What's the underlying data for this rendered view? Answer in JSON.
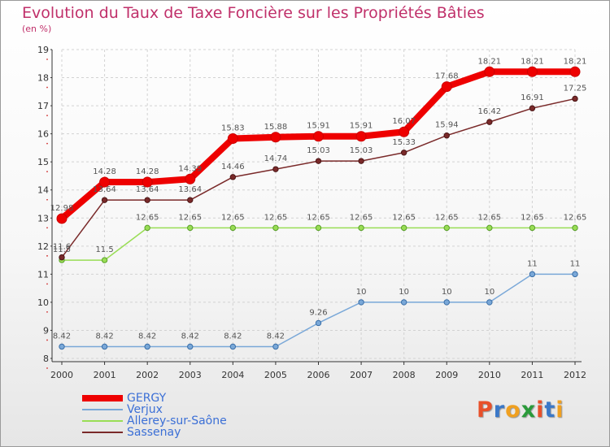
{
  "title": "Evolution du Taux de Taxe Foncière sur les Propriétés Bâties",
  "subtitle": "(en %)",
  "chart_data": {
    "type": "line",
    "title": "Evolution du Taux de Taxe Foncière sur les Propriétés Bâties",
    "ylabel": "(en %)",
    "x": [
      "2000",
      "2001",
      "2002",
      "2003",
      "2004",
      "2005",
      "2006",
      "2007",
      "2008",
      "2009",
      "2010",
      "2011",
      "2012"
    ],
    "ylim": [
      8,
      19
    ],
    "yticks": [
      8,
      9,
      10,
      11,
      12,
      13,
      14,
      15,
      16,
      17,
      18,
      19
    ],
    "grid": true,
    "legend_position": "bottom-left",
    "series": [
      {
        "name": "GERGY",
        "color": "#ee0000",
        "values": [
          12.98,
          14.28,
          14.28,
          14.39,
          15.83,
          15.88,
          15.91,
          15.91,
          16.07,
          17.68,
          18.21,
          18.21,
          18.21
        ],
        "labels": [
          "12.98",
          "14.28",
          "14.28",
          "14.39",
          "15.83",
          "15.88",
          "15.91",
          "15.91",
          "16.07",
          "17.68",
          "18.21",
          "18.21",
          "18.21"
        ]
      },
      {
        "name": "Verjux",
        "color": "#7aa8d8",
        "values": [
          8.42,
          8.42,
          8.42,
          8.42,
          8.42,
          8.42,
          9.26,
          10,
          10,
          10,
          10,
          11,
          11
        ],
        "labels": [
          "8.42",
          "8.42",
          "8.42",
          "8.42",
          "8.42",
          "8.42",
          "9.26",
          "10",
          "10",
          "10",
          "10",
          "11",
          "11"
        ]
      },
      {
        "name": "Allerey-sur-Saône",
        "color": "#99dd55",
        "values": [
          11.5,
          11.5,
          12.65,
          12.65,
          12.65,
          12.65,
          12.65,
          12.65,
          12.65,
          12.65,
          12.65,
          12.65,
          12.65
        ],
        "labels": [
          "11.5",
          "11.5",
          "12.65",
          "12.65",
          "12.65",
          "12.65",
          "12.65",
          "12.65",
          "12.65",
          "12.65",
          "12.65",
          "12.65",
          "12.65"
        ]
      },
      {
        "name": "Sassenay",
        "color": "#7a2a2a",
        "values": [
          11.6,
          13.64,
          13.64,
          13.64,
          14.46,
          14.74,
          15.03,
          15.03,
          15.33,
          15.94,
          16.42,
          16.91,
          17.25
        ],
        "labels": [
          "11.6",
          "13.64",
          "13.64",
          "13.64",
          "14.46",
          "14.74",
          "15.03",
          "15.03",
          "15.33",
          "15.94",
          "16.42",
          "16.91",
          "17.25"
        ]
      }
    ]
  },
  "logo": {
    "text": "Proxiti",
    "letters": [
      "P",
      "r",
      "o",
      "x",
      "i",
      "t",
      "i"
    ],
    "colors": [
      "#e8502a",
      "#3a78c8",
      "#f0a020",
      "#2a9a3a",
      "#e8502a",
      "#3a78c8",
      "#f0a020"
    ]
  }
}
